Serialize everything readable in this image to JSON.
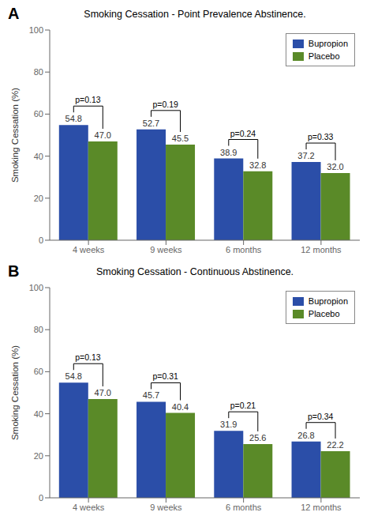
{
  "chart_data": [
    {
      "type": "bar",
      "panel_label": "A",
      "title": "Smoking Cessation - Point Prevalence Abstinence.",
      "ylabel": "Smoking Cessation (%)",
      "categories": [
        "4 weeks",
        "9 weeks",
        "6 months",
        "12 months"
      ],
      "series": [
        {
          "name": "Bupropion",
          "color": "#2b4ea8",
          "values": [
            54.8,
            52.7,
            38.9,
            37.2
          ],
          "value_labels": [
            "54.8",
            "52.7",
            "38.9",
            "37.2"
          ]
        },
        {
          "name": "Placebo",
          "color": "#5a8a28",
          "values": [
            47.0,
            45.5,
            32.8,
            32.0
          ],
          "value_labels": [
            "47.0",
            "45.5",
            "32.8",
            "32.0"
          ]
        }
      ],
      "annotations": [
        "p=0.13",
        "p=0.19",
        "p=0.24",
        "p=0.33"
      ],
      "ylim": [
        0,
        100
      ],
      "yticks": [
        0,
        20,
        40,
        60,
        80,
        100
      ],
      "grid": false,
      "legend": "upper right",
      "data_labels": true
    },
    {
      "type": "bar",
      "panel_label": "B",
      "title": "Smoking Cessation - Continuous Abstinence.",
      "ylabel": "Smoking Cessation (%)",
      "categories": [
        "4 weeks",
        "9 weeks",
        "6 months",
        "12 months"
      ],
      "series": [
        {
          "name": "Bupropion",
          "color": "#2b4ea8",
          "values": [
            54.8,
            45.7,
            31.9,
            26.8
          ],
          "value_labels": [
            "54.8",
            "45.7",
            "31.9",
            "26.8"
          ]
        },
        {
          "name": "Placebo",
          "color": "#5a8a28",
          "values": [
            47.0,
            40.4,
            25.6,
            22.2
          ],
          "value_labels": [
            "47.0",
            "40.4",
            "25.6",
            "22.2"
          ]
        }
      ],
      "annotations": [
        "p=0.13",
        "p=0.31",
        "p=0.21",
        "p=0.34"
      ],
      "ylim": [
        0,
        100
      ],
      "yticks": [
        0,
        20,
        40,
        60,
        80,
        100
      ],
      "grid": false,
      "legend": "upper right",
      "data_labels": true
    }
  ]
}
